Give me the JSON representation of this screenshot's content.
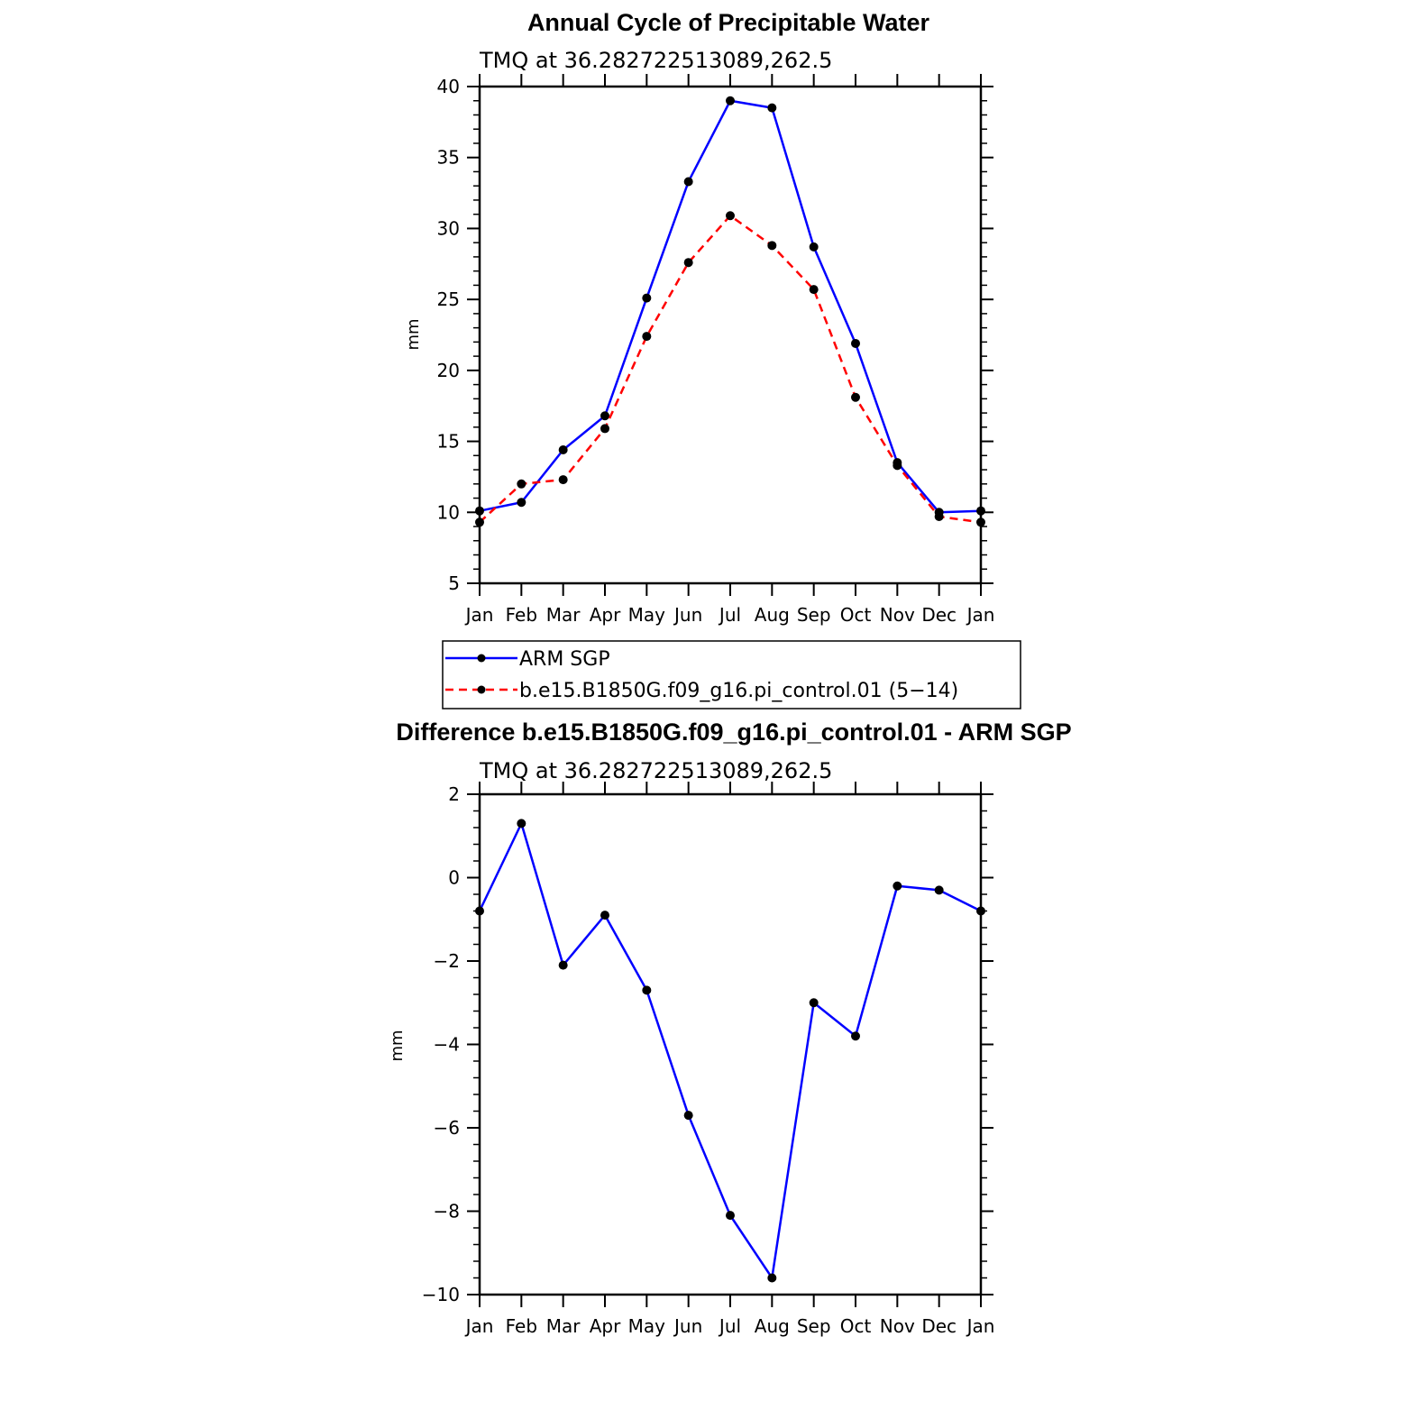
{
  "chart_data": [
    {
      "type": "line",
      "title": "Annual Cycle of Precipitable Water",
      "subtitle": "TMQ at 36.282722513089,262.5",
      "xlabel": "",
      "ylabel": "mm",
      "categories": [
        "Jan",
        "Feb",
        "Mar",
        "Apr",
        "May",
        "Jun",
        "Jul",
        "Aug",
        "Sep",
        "Oct",
        "Nov",
        "Dec",
        "Jan"
      ],
      "ylim": [
        5,
        40
      ],
      "yticks": [
        "5",
        "10",
        "15",
        "20",
        "25",
        "30",
        "35",
        "40"
      ],
      "series": [
        {
          "name": "ARM SGP",
          "color": "#0000ff",
          "dash": "solid",
          "values": [
            10.1,
            10.7,
            14.4,
            16.8,
            25.1,
            33.3,
            39.0,
            38.5,
            28.7,
            21.9,
            13.5,
            10.0,
            10.1
          ]
        },
        {
          "name": "b.e15.B1850G.f09_g16.pi_control.01 (5−14)",
          "color": "#ff0000",
          "dash": "dashed",
          "values": [
            9.3,
            12.0,
            12.3,
            15.9,
            22.4,
            27.6,
            30.9,
            28.8,
            25.7,
            18.1,
            13.3,
            9.7,
            9.3
          ]
        }
      ],
      "legend": {
        "placement": "below",
        "entries": [
          "ARM SGP",
          "b.e15.B1850G.f09_g16.pi_control.01 (5−14)"
        ]
      }
    },
    {
      "type": "line",
      "title": "Difference b.e15.B1850G.f09_g16.pi_control.01 - ARM SGP",
      "subtitle": "TMQ at 36.282722513089,262.5",
      "xlabel": "",
      "ylabel": "mm",
      "categories": [
        "Jan",
        "Feb",
        "Mar",
        "Apr",
        "May",
        "Jun",
        "Jul",
        "Aug",
        "Sep",
        "Oct",
        "Nov",
        "Dec",
        "Jan"
      ],
      "ylim": [
        -10,
        2
      ],
      "yticks": [
        "−10",
        "−8",
        "−6",
        "−4",
        "−2",
        "0",
        "2"
      ],
      "series": [
        {
          "name": "Difference",
          "color": "#0000ff",
          "dash": "solid",
          "values": [
            -0.8,
            1.3,
            -2.1,
            -0.9,
            -2.7,
            -5.7,
            -8.1,
            -9.6,
            -3.0,
            -3.8,
            -0.2,
            -0.3,
            -0.8
          ]
        }
      ]
    }
  ]
}
